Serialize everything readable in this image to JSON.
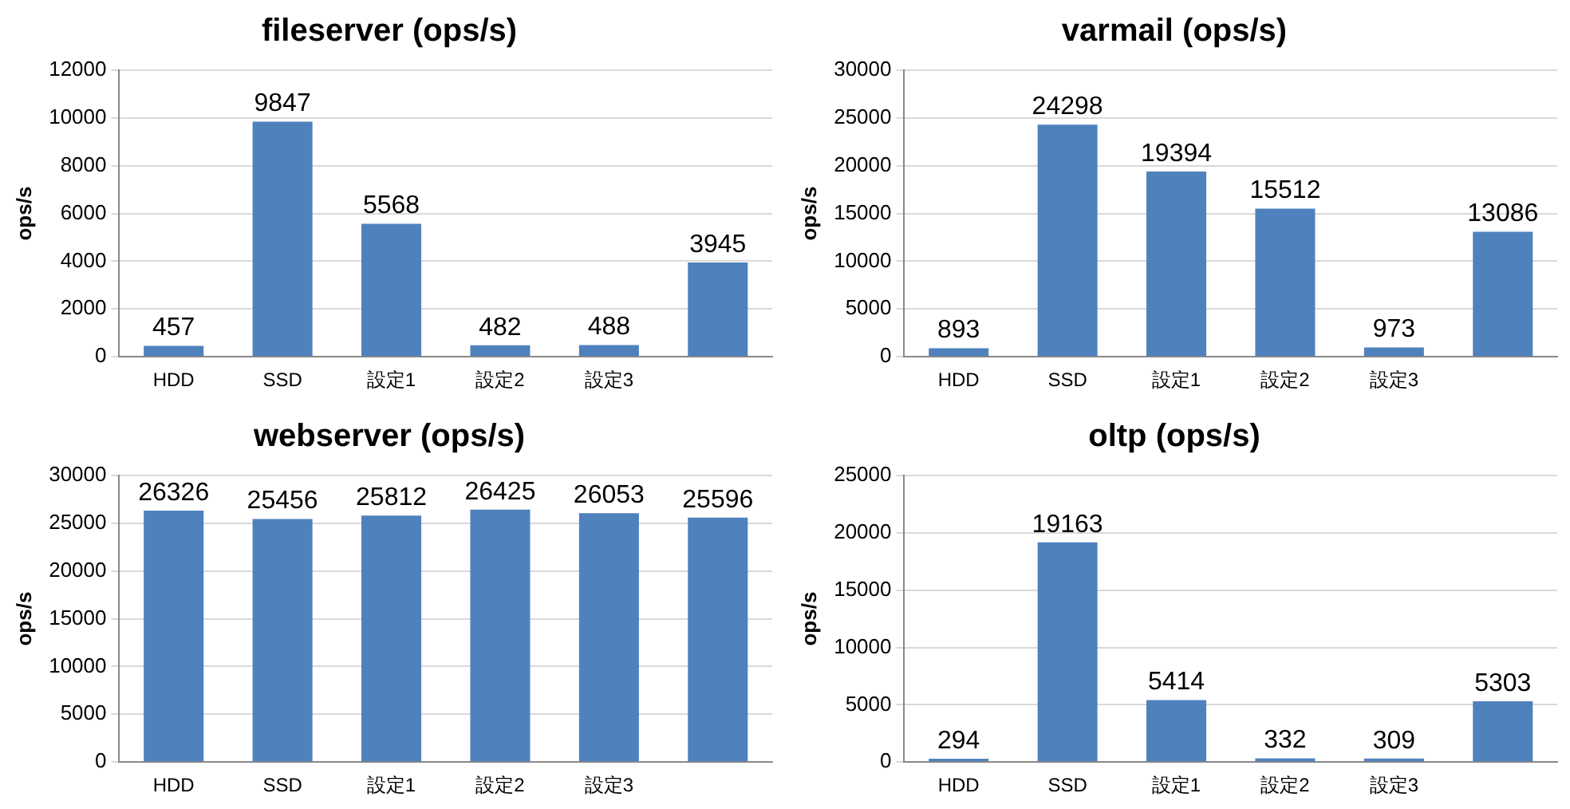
{
  "chart_data": [
    {
      "type": "bar",
      "title": "fileserver (ops/s)",
      "ylabel": "ops/s",
      "categories": [
        "HDD",
        "SSD",
        "設定1",
        "設定2",
        "設定3",
        null
      ],
      "values": [
        457,
        9847,
        5568,
        482,
        488,
        3945
      ],
      "color": "#4f81bd",
      "ylim": [
        0,
        12000
      ],
      "yticks": [
        0,
        2000,
        4000,
        6000,
        8000,
        10000,
        12000
      ],
      "grid": "y",
      "data_labels": true
    },
    {
      "type": "bar",
      "title": "varmail (ops/s)",
      "ylabel": "ops/s",
      "categories": [
        "HDD",
        "SSD",
        "設定1",
        "設定2",
        "設定3",
        null
      ],
      "values": [
        893,
        24298,
        19394,
        15512,
        973,
        13086
      ],
      "color": "#4f81bd",
      "ylim": [
        0,
        30000
      ],
      "yticks": [
        0,
        5000,
        10000,
        15000,
        20000,
        25000,
        30000
      ],
      "grid": "y",
      "data_labels": true
    },
    {
      "type": "bar",
      "title": "webserver (ops/s)",
      "ylabel": "ops/s",
      "categories": [
        "HDD",
        "SSD",
        "設定1",
        "設定2",
        "設定3",
        null
      ],
      "values": [
        26326,
        25456,
        25812,
        26425,
        26053,
        25596
      ],
      "color": "#4f81bd",
      "ylim": [
        0,
        30000
      ],
      "yticks": [
        0,
        5000,
        10000,
        15000,
        20000,
        25000,
        30000
      ],
      "grid": "y",
      "data_labels": true
    },
    {
      "type": "bar",
      "title": "oltp (ops/s)",
      "ylabel": "ops/s",
      "categories": [
        "HDD",
        "SSD",
        "設定1",
        "設定2",
        "設定3",
        null
      ],
      "values": [
        294,
        19163,
        5414,
        332,
        309,
        5303
      ],
      "color": "#4f81bd",
      "ylim": [
        0,
        25000
      ],
      "yticks": [
        0,
        5000,
        10000,
        15000,
        20000,
        25000
      ],
      "grid": "y",
      "data_labels": true
    }
  ]
}
